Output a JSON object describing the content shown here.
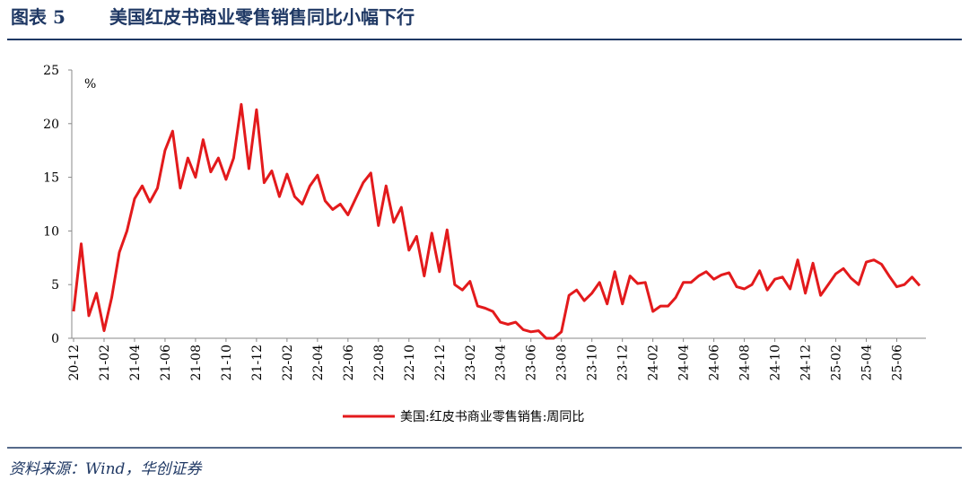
{
  "chart_data": {
    "type": "line",
    "figure_label": "图表 5",
    "title": "美国红皮书商业零售销售同比小幅下行",
    "y_unit_label": "%",
    "source": "资料来源：Wind，华创证券",
    "categories": [
      "20-12",
      null,
      null,
      null,
      "21-02",
      null,
      null,
      null,
      "21-04",
      null,
      null,
      null,
      "21-06",
      null,
      null,
      null,
      "21-08",
      null,
      null,
      null,
      "21-10",
      null,
      null,
      null,
      "21-12",
      null,
      null,
      null,
      "22-02",
      null,
      null,
      null,
      "22-04",
      null,
      null,
      null,
      "22-06",
      null,
      null,
      null,
      "22-08",
      null,
      null,
      null,
      "22-10",
      null,
      null,
      null,
      "22-12",
      null,
      null,
      null,
      "23-02",
      null,
      null,
      null,
      "23-04",
      null,
      null,
      null,
      "23-06",
      null,
      null,
      null,
      "23-08",
      null,
      null,
      null,
      "23-10",
      null,
      null,
      null,
      "23-12",
      null,
      null,
      null,
      "24-02",
      null,
      null,
      null,
      "24-04",
      null,
      null,
      null,
      "24-06",
      null,
      null,
      null,
      "24-08",
      null,
      null,
      null,
      "24-10",
      null,
      null,
      null,
      "24-12",
      null,
      null,
      null,
      "25-02",
      null,
      null,
      null,
      "25-04",
      null,
      null,
      null,
      "25-06",
      null,
      null,
      null
    ],
    "series": [
      {
        "name": "美国:红皮书商业零售销售:周同比",
        "color": "#e31a1c",
        "values": [
          2.5,
          8.8,
          2.1,
          4.2,
          0.7,
          3.8,
          8,
          10,
          13,
          14.2,
          12.7,
          14,
          17.5,
          19.3,
          14,
          16.8,
          15,
          18.5,
          15.5,
          16.8,
          14.8,
          16.8,
          21.8,
          15.8,
          21.3,
          14.5,
          15.6,
          13.2,
          15.3,
          13.2,
          12.5,
          14.2,
          15.2,
          12.8,
          12,
          12.5,
          11.5,
          13,
          14.5,
          15.4,
          10.5,
          14.2,
          10.8,
          12.2,
          8.2,
          9.5,
          5.8,
          9.8,
          6.2,
          10.1,
          5,
          4.5,
          5.3,
          3,
          2.8,
          2.5,
          1.5,
          1.3,
          1.5,
          0.8,
          0.6,
          0.7,
          0,
          0,
          0.6,
          4,
          4.5,
          3.5,
          4.2,
          5.2,
          3.2,
          6.2,
          3.2,
          5.8,
          5.1,
          5.2,
          2.5,
          3,
          3,
          3.8,
          5.2,
          5.2,
          5.8,
          6.2,
          5.5,
          5.9,
          6.1,
          4.8,
          4.6,
          5,
          6.3,
          4.5,
          5.5,
          5.7,
          4.6,
          7.3,
          4.2,
          7,
          4,
          5,
          6,
          6.5,
          5.6,
          5,
          7.1,
          7.3,
          6.9,
          5.8,
          4.8,
          5,
          5.7,
          4.9
        ]
      }
    ],
    "ylim": [
      0,
      25
    ],
    "yticks": [
      0,
      5,
      10,
      15,
      20,
      25
    ],
    "grid": false
  }
}
